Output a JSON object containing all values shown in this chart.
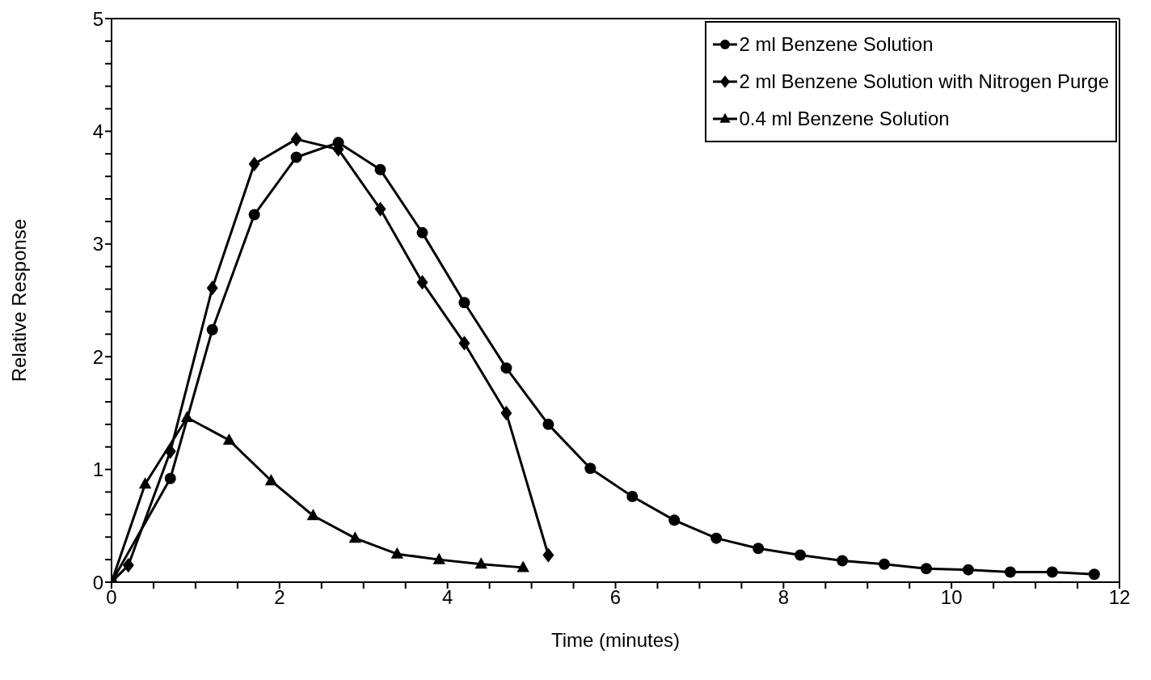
{
  "chart_data": {
    "type": "line",
    "xlabel": "Time (minutes)",
    "ylabel": "Relative Response",
    "xlim": [
      0,
      12
    ],
    "xticks": [
      0,
      {
        "value": 0.5,
        "label": null
      },
      {
        "value": 1,
        "label": null
      },
      {
        "value": 1.5,
        "label": null
      },
      2,
      {
        "value": 2.5,
        "label": null
      },
      {
        "value": 3,
        "label": null
      },
      {
        "value": 3.5,
        "label": null
      },
      4,
      {
        "value": 4.5,
        "label": null
      },
      {
        "value": 5,
        "label": null
      },
      {
        "value": 5.5,
        "label": null
      },
      6,
      {
        "value": 6.5,
        "label": null
      },
      {
        "value": 7,
        "label": null
      },
      {
        "value": 7.5,
        "label": null
      },
      8,
      {
        "value": 8.5,
        "label": null
      },
      {
        "value": 9,
        "label": null
      },
      {
        "value": 9.5,
        "label": null
      },
      10,
      {
        "value": 10.5,
        "label": null
      },
      {
        "value": 11,
        "label": null
      },
      {
        "value": 11.5,
        "label": null
      },
      12
    ],
    "ylim": [
      0,
      5
    ],
    "yticks": [
      0,
      {
        "value": 0.2,
        "label": null
      },
      {
        "value": 0.4,
        "label": null
      },
      {
        "value": 0.6,
        "label": null
      },
      {
        "value": 0.8,
        "label": null
      },
      1,
      {
        "value": 1.2,
        "label": null
      },
      {
        "value": 1.4,
        "label": null
      },
      {
        "value": 1.6,
        "label": null
      },
      {
        "value": 1.8,
        "label": null
      },
      2,
      {
        "value": 2.2,
        "label": null
      },
      {
        "value": 2.4,
        "label": null
      },
      {
        "value": 2.6,
        "label": null
      },
      {
        "value": 2.8,
        "label": null
      },
      3,
      {
        "value": 3.2,
        "label": null
      },
      {
        "value": 3.4,
        "label": null
      },
      {
        "value": 3.6,
        "label": null
      },
      {
        "value": 3.8,
        "label": null
      },
      4,
      {
        "value": 4.2,
        "label": null
      },
      {
        "value": 4.4,
        "label": null
      },
      {
        "value": 4.6,
        "label": null
      },
      {
        "value": 4.8,
        "label": null
      },
      5
    ],
    "legend": "top right",
    "line_style": "solid",
    "series": [
      {
        "name": "2 ml Benzene Solution",
        "color": "#000000",
        "marker": "circle",
        "x": [
          0,
          0.7,
          1.2,
          1.7,
          2.2,
          2.7,
          3.2,
          3.7,
          4.2,
          4.7,
          5.2,
          5.7,
          6.2,
          6.7,
          7.2,
          7.7,
          8.2,
          8.7,
          9.2,
          9.7,
          10.2,
          10.7,
          11.2,
          11.7
        ],
        "values": [
          0,
          0.92,
          2.24,
          3.26,
          3.77,
          3.9,
          3.66,
          3.1,
          2.48,
          1.9,
          1.4,
          1.01,
          0.76,
          0.55,
          0.39,
          0.3,
          0.24,
          0.19,
          0.16,
          0.12,
          0.11,
          0.09,
          0.09,
          0.07
        ]
      },
      {
        "name": "2 ml Benzene Solution with Nitrogen Purge",
        "color": "#000000",
        "marker": "diamond",
        "x": [
          0,
          0.2,
          0.7,
          1.2,
          1.7,
          2.2,
          2.7,
          3.2,
          3.7,
          4.2,
          4.7,
          5.2
        ],
        "values": [
          0,
          0.15,
          1.16,
          2.61,
          3.71,
          3.93,
          3.84,
          3.31,
          2.66,
          2.12,
          1.5,
          0.24
        ]
      },
      {
        "name": "0.4 ml Benzene Solution",
        "color": "#000000",
        "marker": "triangle",
        "x": [
          0,
          0.4,
          0.9,
          1.4,
          1.9,
          2.4,
          2.9,
          3.4,
          3.9,
          4.4,
          4.9
        ],
        "values": [
          0,
          0.87,
          1.46,
          1.26,
          0.9,
          0.59,
          0.39,
          0.25,
          0.2,
          0.16,
          0.13
        ]
      }
    ]
  }
}
